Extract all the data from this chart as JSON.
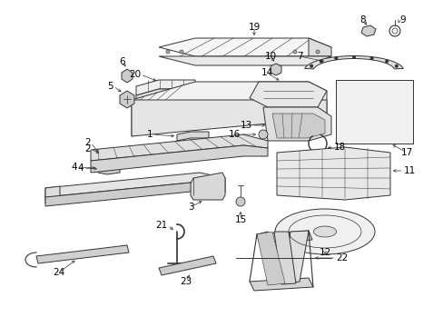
{
  "bg_color": "#ffffff",
  "line_color": "#333333",
  "text_color": "#000000",
  "fig_width": 4.89,
  "fig_height": 3.6,
  "dpi": 100,
  "label_fontsize": 7.5
}
